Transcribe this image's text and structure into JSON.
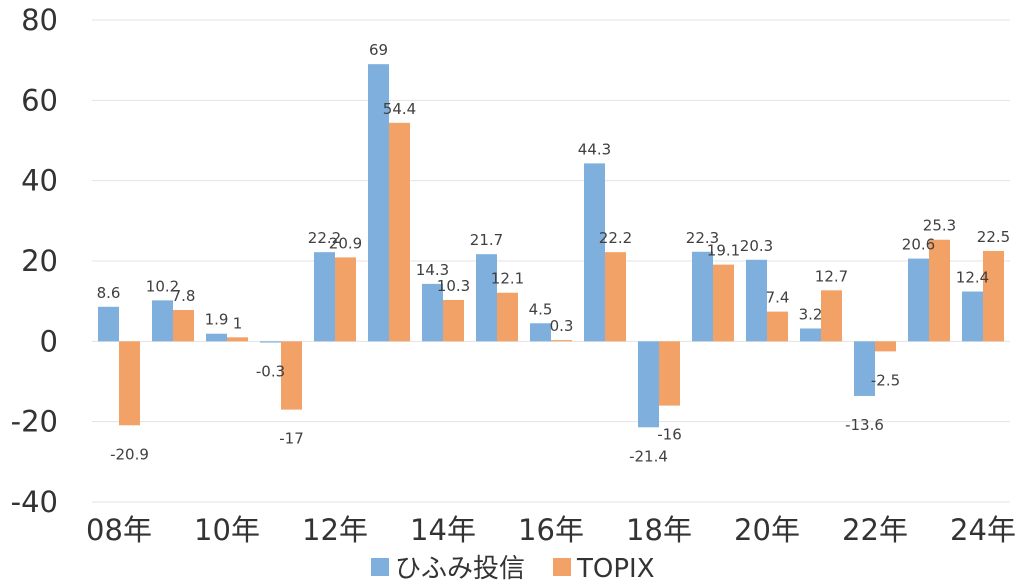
{
  "chart_data": {
    "type": "bar",
    "categories": [
      "08年",
      "09年",
      "10年",
      "11年",
      "12年",
      "13年",
      "14年",
      "15年",
      "16年",
      "17年",
      "18年",
      "19年",
      "20年",
      "21年",
      "22年",
      "23年",
      "24年"
    ],
    "x_tick_labels": [
      "08年",
      "10年",
      "12年",
      "14年",
      "16年",
      "18年",
      "20年",
      "22年",
      "24年"
    ],
    "series": [
      {
        "name": "ひふみ投信",
        "color": "#7fb0dd",
        "values": [
          8.6,
          10.2,
          1.9,
          -0.3,
          22.2,
          69,
          14.3,
          21.7,
          4.5,
          44.3,
          -21.4,
          22.3,
          20.3,
          3.2,
          -13.6,
          20.6,
          12.4
        ],
        "labels": [
          "8.6",
          "10.2",
          "1.9",
          "-0.3",
          "22.2",
          "69",
          "14.3",
          "21.7",
          "4.5",
          "44.3",
          "-21.4",
          "22.3",
          "20.3",
          "3.2",
          "-13.6",
          "20.6",
          "12.4"
        ]
      },
      {
        "name": "TOPIX",
        "color": "#f2a266",
        "values": [
          -20.9,
          7.8,
          1,
          -17,
          20.9,
          54.4,
          10.3,
          12.1,
          0.3,
          22.2,
          -16,
          19.1,
          7.4,
          12.7,
          -2.5,
          25.3,
          22.5
        ],
        "labels": [
          "-20.9",
          "7.8",
          "1",
          "-17",
          "20.9",
          "54.4",
          "10.3",
          "12.1",
          "0.3",
          "22.2",
          "-16",
          "19.1",
          "7.4",
          "12.7",
          "-2.5",
          "25.3",
          "22.5"
        ]
      }
    ],
    "y_ticks": [
      "80",
      "60",
      "40",
      "20",
      "0",
      "-20",
      "-40"
    ],
    "ylim": [
      -40,
      80
    ],
    "grid": true,
    "legend_position": "bottom"
  }
}
